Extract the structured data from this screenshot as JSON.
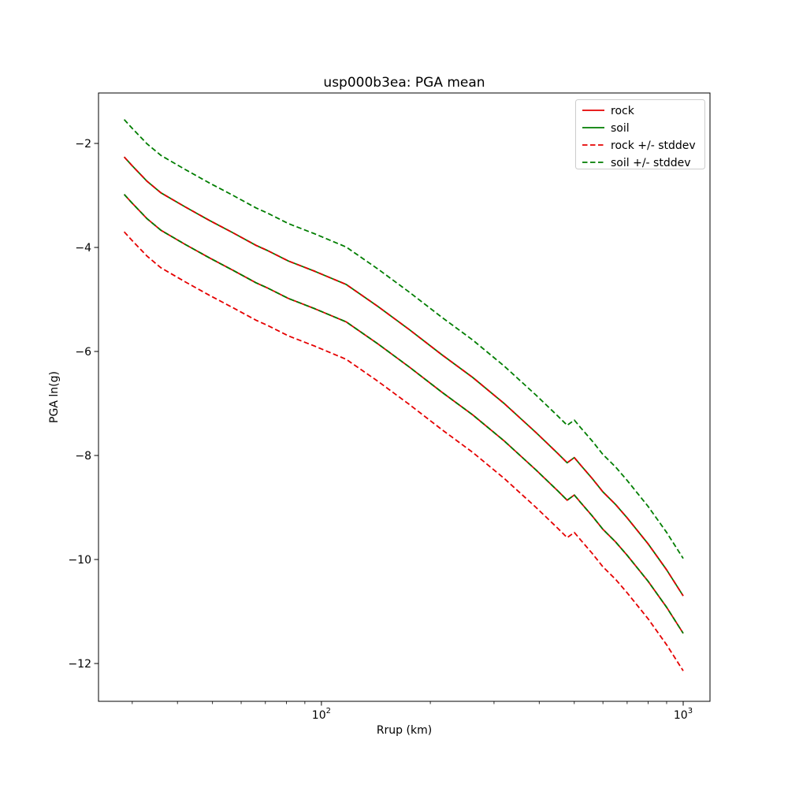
{
  "title": "usp000b3ea: PGA mean",
  "chart_data": {
    "type": "line",
    "title": "usp000b3ea: PGA mean",
    "xlabel": "Rrup (km)",
    "ylabel": "PGA ln(g)",
    "x_scale": "log",
    "grid": false,
    "xlim": [
      24.2,
      1186
    ],
    "ylim": [
      -12.727,
      -1.03
    ],
    "x_km": [
      28.5,
      30,
      33,
      36,
      42,
      49,
      57,
      66,
      71,
      81,
      96,
      117,
      143,
      175,
      215,
      262,
      320,
      392,
      450,
      478,
      500,
      520,
      560,
      600,
      650,
      700,
      800,
      900,
      1000
    ],
    "series": [
      {
        "name": "rock",
        "color": "#e50000",
        "style": "solid",
        "values": [
          -2.98,
          -3.15,
          -3.45,
          -3.67,
          -3.94,
          -4.2,
          -4.44,
          -4.68,
          -4.78,
          -4.98,
          -5.18,
          -5.43,
          -5.85,
          -6.3,
          -6.78,
          -7.22,
          -7.72,
          -8.28,
          -8.68,
          -8.86,
          -8.76,
          -8.9,
          -9.16,
          -9.42,
          -9.66,
          -9.92,
          -10.42,
          -10.92,
          -11.42
        ]
      },
      {
        "name": "soil",
        "color": "#007d00",
        "style": "solid",
        "values": [
          -2.26,
          -2.43,
          -2.73,
          -2.95,
          -3.22,
          -3.48,
          -3.72,
          -3.96,
          -4.06,
          -4.26,
          -4.46,
          -4.71,
          -5.13,
          -5.58,
          -6.06,
          -6.5,
          -7.0,
          -7.56,
          -7.96,
          -8.14,
          -8.04,
          -8.18,
          -8.44,
          -8.7,
          -8.94,
          -9.2,
          -9.7,
          -10.2,
          -10.7
        ]
      },
      {
        "name": "rock + stddev",
        "color": "#e50000",
        "style": "dashed",
        "values": [
          -2.26,
          -2.43,
          -2.73,
          -2.95,
          -3.22,
          -3.48,
          -3.72,
          -3.96,
          -4.06,
          -4.26,
          -4.46,
          -4.71,
          -5.13,
          -5.58,
          -6.06,
          -6.5,
          -7.0,
          -7.56,
          -7.96,
          -8.14,
          -8.04,
          -8.18,
          -8.44,
          -8.7,
          -8.94,
          -9.2,
          -9.7,
          -10.2,
          -10.7
        ]
      },
      {
        "name": "rock - stddev",
        "color": "#e50000",
        "style": "dashed",
        "values": [
          -3.7,
          -3.87,
          -4.17,
          -4.39,
          -4.66,
          -4.92,
          -5.16,
          -5.4,
          -5.5,
          -5.7,
          -5.9,
          -6.15,
          -6.57,
          -7.02,
          -7.5,
          -7.94,
          -8.44,
          -9.0,
          -9.4,
          -9.58,
          -9.48,
          -9.62,
          -9.88,
          -10.14,
          -10.38,
          -10.64,
          -11.14,
          -11.64,
          -12.14
        ]
      },
      {
        "name": "soil + stddev",
        "color": "#007d00",
        "style": "dashed",
        "values": [
          -1.54,
          -1.71,
          -2.01,
          -2.23,
          -2.5,
          -2.76,
          -3.0,
          -3.24,
          -3.34,
          -3.54,
          -3.74,
          -3.99,
          -4.41,
          -4.86,
          -5.34,
          -5.78,
          -6.28,
          -6.84,
          -7.24,
          -7.42,
          -7.32,
          -7.46,
          -7.72,
          -7.98,
          -8.22,
          -8.48,
          -8.98,
          -9.48,
          -9.98
        ]
      },
      {
        "name": "soil - stddev",
        "color": "#007d00",
        "style": "dashed",
        "values": [
          -2.98,
          -3.15,
          -3.45,
          -3.67,
          -3.94,
          -4.2,
          -4.44,
          -4.68,
          -4.78,
          -4.98,
          -5.18,
          -5.43,
          -5.85,
          -6.3,
          -6.78,
          -7.22,
          -7.72,
          -8.28,
          -8.68,
          -8.86,
          -8.76,
          -8.9,
          -9.16,
          -9.42,
          -9.66,
          -9.92,
          -10.42,
          -10.92,
          -11.42
        ]
      }
    ],
    "x_major_ticks": [
      {
        "value": 100,
        "base": "10",
        "exp": "2"
      },
      {
        "value": 1000,
        "base": "10",
        "exp": "3"
      }
    ],
    "x_minor_ticks": [
      30,
      40,
      50,
      60,
      70,
      80,
      90,
      200,
      300,
      400,
      500,
      600,
      700,
      800,
      900
    ],
    "y_ticks": [
      {
        "value": -2,
        "label": "−2"
      },
      {
        "value": -4,
        "label": "−4"
      },
      {
        "value": -6,
        "label": "−6"
      },
      {
        "value": -8,
        "label": "−8"
      },
      {
        "value": -10,
        "label": "−10"
      },
      {
        "value": -12,
        "label": "−12"
      }
    ],
    "legend": {
      "position": "upper right",
      "entries": [
        {
          "label": "rock",
          "color": "#e50000",
          "style": "solid"
        },
        {
          "label": "soil",
          "color": "#007d00",
          "style": "solid"
        },
        {
          "label": "rock +/- stddev",
          "color": "#e50000",
          "style": "dashed"
        },
        {
          "label": "soil +/- stddev",
          "color": "#007d00",
          "style": "dashed"
        }
      ]
    }
  }
}
